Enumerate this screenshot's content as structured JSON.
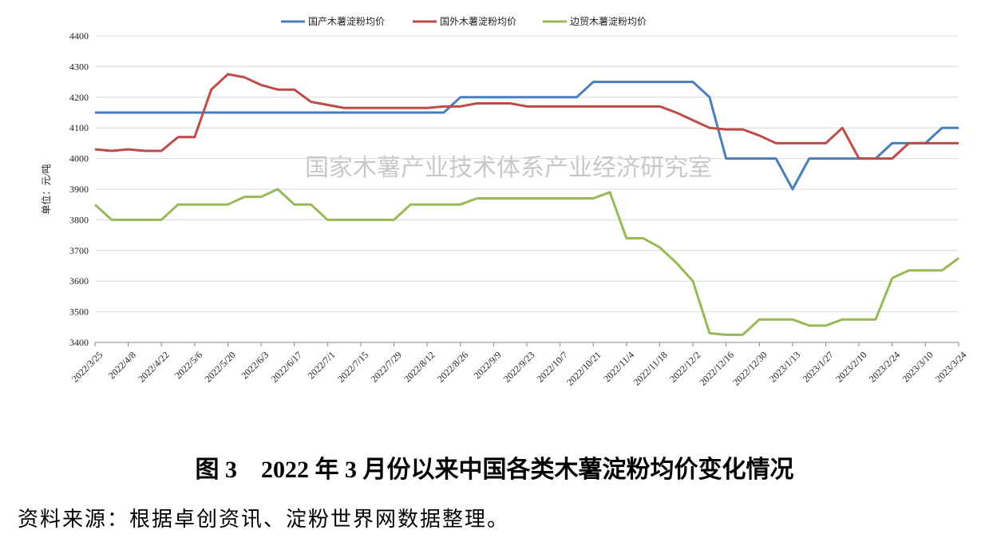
{
  "chart_data": {
    "type": "line",
    "y_label": "单位：元/吨",
    "watermark": "国家木薯产业技术体系产业经济研究室",
    "categories": [
      "2022/3/25",
      null,
      "2022/4/8",
      null,
      "2022/4/22",
      null,
      "2022/5/6",
      null,
      "2022/5/20",
      null,
      "2022/6/3",
      null,
      "2022/6/17",
      null,
      "2022/7/1",
      null,
      "2022/7/15",
      null,
      "2022/7/29",
      null,
      "2022/8/12",
      null,
      "2022/8/26",
      null,
      "2022/9/9",
      null,
      "2022/9/23",
      null,
      "2022/10/7",
      null,
      "2022/10/21",
      null,
      "2022/11/4",
      null,
      "2022/11/18",
      null,
      "2022/12/2",
      null,
      "2022/12/16",
      null,
      "2022/12/30",
      null,
      "2023/1/13",
      null,
      "2023/1/27",
      null,
      "2023/2/10",
      null,
      "2023/2/24",
      null,
      "2023/3/10",
      null,
      "2023/3/24"
    ],
    "series": [
      {
        "name": "国产木薯淀粉均价",
        "color": "#4a7ebb",
        "values": [
          4150,
          4150,
          4150,
          4150,
          4150,
          4150,
          4150,
          4150,
          4150,
          4150,
          4150,
          4150,
          4150,
          4150,
          4150,
          4150,
          4150,
          4150,
          4150,
          4150,
          4150,
          4150,
          4200,
          4200,
          4200,
          4200,
          4200,
          4200,
          4200,
          4200,
          4250,
          4250,
          4250,
          4250,
          4250,
          4250,
          4250,
          4200,
          4000,
          4000,
          4000,
          4000,
          3900,
          4000,
          4000,
          4000,
          4000,
          4000,
          4050,
          4050,
          4050,
          4100,
          4100
        ]
      },
      {
        "name": "国外木薯淀粉均价",
        "color": "#be4b48",
        "values": [
          4030,
          4025,
          4030,
          4025,
          4025,
          4070,
          4070,
          4225,
          4275,
          4265,
          4240,
          4225,
          4225,
          4185,
          4175,
          4165,
          4165,
          4165,
          4165,
          4165,
          4165,
          4170,
          4170,
          4180,
          4180,
          4180,
          4170,
          4170,
          4170,
          4170,
          4170,
          4170,
          4170,
          4170,
          4170,
          4150,
          4125,
          4100,
          4095,
          4095,
          4075,
          4050,
          4050,
          4050,
          4050,
          4100,
          4000,
          4000,
          4000,
          4050,
          4050,
          4050,
          4050
        ]
      },
      {
        "name": "边贸木薯淀粉均价",
        "color": "#98b954",
        "values": [
          3850,
          3800,
          3800,
          3800,
          3800,
          3850,
          3850,
          3850,
          3850,
          3875,
          3875,
          3900,
          3850,
          3850,
          3800,
          3800,
          3800,
          3800,
          3800,
          3850,
          3850,
          3850,
          3850,
          3870,
          3870,
          3870,
          3870,
          3870,
          3870,
          3870,
          3870,
          3890,
          3740,
          3740,
          3710,
          3660,
          3600,
          3430,
          3425,
          3425,
          3475,
          3475,
          3475,
          3455,
          3455,
          3475,
          3475,
          3475,
          3610,
          3635,
          3635,
          3635,
          3675
        ]
      }
    ],
    "ylim": [
      3400,
      4400
    ],
    "yticks": [
      3400,
      3500,
      3600,
      3700,
      3800,
      3900,
      4000,
      4100,
      4200,
      4300,
      4400
    ],
    "grid": true
  },
  "caption": "图 3　2022 年 3 月份以来中国各类木薯淀粉均价变化情况",
  "source": "资料来源：根据卓创资讯、淀粉世界网数据整理。"
}
